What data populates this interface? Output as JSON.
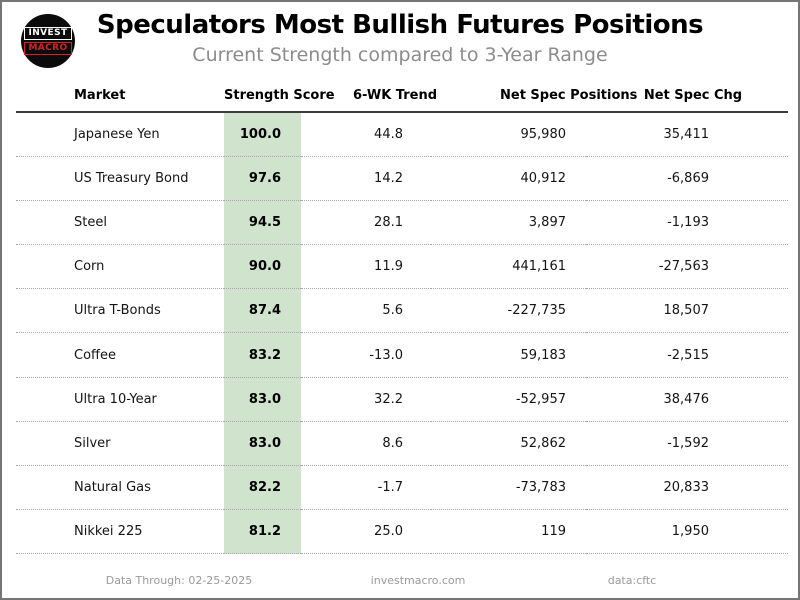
{
  "header": {
    "title": "Speculators Most Bullish Futures Positions",
    "subtitle": "Current Strength compared to 3-Year Range",
    "logo": {
      "line1": "INVEST",
      "line2": "MACRO"
    }
  },
  "table": {
    "columns": [
      "Market",
      "Strength Score",
      "6-WK Trend",
      "Net Spec Positions",
      "Net Spec Chg"
    ],
    "rows": [
      {
        "market": "Japanese Yen",
        "score": "100.0",
        "trend": "44.8",
        "positions": "95,980",
        "change": "35,411"
      },
      {
        "market": "US Treasury Bond",
        "score": "97.6",
        "trend": "14.2",
        "positions": "40,912",
        "change": "-6,869"
      },
      {
        "market": "Steel",
        "score": "94.5",
        "trend": "28.1",
        "positions": "3,897",
        "change": "-1,193"
      },
      {
        "market": "Corn",
        "score": "90.0",
        "trend": "11.9",
        "positions": "441,161",
        "change": "-27,563"
      },
      {
        "market": "Ultra T-Bonds",
        "score": "87.4",
        "trend": "5.6",
        "positions": "-227,735",
        "change": "18,507"
      },
      {
        "market": "Coffee",
        "score": "83.2",
        "trend": "-13.0",
        "positions": "59,183",
        "change": "-2,515"
      },
      {
        "market": "Ultra 10-Year",
        "score": "83.0",
        "trend": "32.2",
        "positions": "-52,957",
        "change": "38,476"
      },
      {
        "market": "Silver",
        "score": "83.0",
        "trend": "8.6",
        "positions": "52,862",
        "change": "-1,592"
      },
      {
        "market": "Natural Gas",
        "score": "82.2",
        "trend": "-1.7",
        "positions": "-73,783",
        "change": "20,833"
      },
      {
        "market": "Nikkei 225",
        "score": "81.2",
        "trend": "25.0",
        "positions": "119",
        "change": "1,950"
      }
    ]
  },
  "footer": {
    "data_through": "Data Through: 02-25-2025",
    "website": "investmacro.com",
    "source": "data:cftc"
  },
  "colors": {
    "score_highlight": "#cfe3cd",
    "logo_red": "#d42329",
    "border_gray": "#757575"
  },
  "chart_data": {
    "type": "table",
    "title": "Speculators Most Bullish Futures Positions",
    "subtitle": "Current Strength compared to 3-Year Range",
    "columns": [
      "Market",
      "Strength Score",
      "6-WK Trend",
      "Net Spec Positions",
      "Net Spec Chg"
    ],
    "rows": [
      [
        "Japanese Yen",
        100.0,
        44.8,
        95980,
        35411
      ],
      [
        "US Treasury Bond",
        97.6,
        14.2,
        40912,
        -6869
      ],
      [
        "Steel",
        94.5,
        28.1,
        3897,
        -1193
      ],
      [
        "Corn",
        90.0,
        11.9,
        441161,
        -27563
      ],
      [
        "Ultra T-Bonds",
        87.4,
        5.6,
        -227735,
        18507
      ],
      [
        "Coffee",
        83.2,
        -13.0,
        59183,
        -2515
      ],
      [
        "Ultra 10-Year",
        83.0,
        32.2,
        -52957,
        38476
      ],
      [
        "Silver",
        83.0,
        8.6,
        52862,
        -1592
      ],
      [
        "Natural Gas",
        82.2,
        -1.7,
        -73783,
        20833
      ],
      [
        "Nikkei 225",
        81.2,
        25.0,
        119,
        1950
      ]
    ],
    "notes": [
      "Strength Score column highlighted in light green",
      "scores sorted descending 100.0 to 81.2"
    ]
  }
}
